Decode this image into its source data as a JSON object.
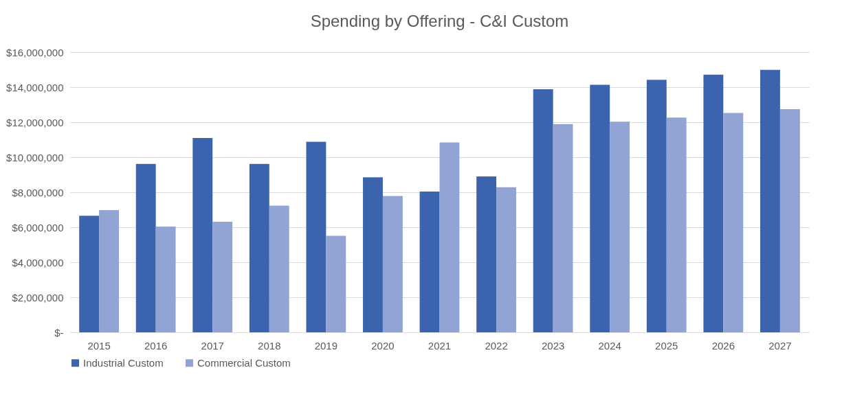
{
  "chart_data": {
    "type": "bar",
    "title": "Spending by Offering - C&I Custom",
    "categories": [
      "2015",
      "2016",
      "2017",
      "2018",
      "2019",
      "2020",
      "2021",
      "2022",
      "2023",
      "2024",
      "2025",
      "2026",
      "2027"
    ],
    "series": [
      {
        "name": "Industrial Custom",
        "color": "#3c64ae",
        "values": [
          6660000,
          9620000,
          11100000,
          9620000,
          10880000,
          8850000,
          8040000,
          8900000,
          13880000,
          14140000,
          14420000,
          14720000,
          14990000
        ]
      },
      {
        "name": "Commercial Custom",
        "color": "#91a4d4",
        "values": [
          6980000,
          6040000,
          6310000,
          7240000,
          5510000,
          7780000,
          10840000,
          8280000,
          11890000,
          12030000,
          12260000,
          12530000,
          12750000
        ]
      }
    ],
    "ylim": [
      0,
      16000000
    ],
    "yticks": [
      {
        "value": 0,
        "label": "$-"
      },
      {
        "value": 2000000,
        "label": "$2,000,000"
      },
      {
        "value": 4000000,
        "label": "$4,000,000"
      },
      {
        "value": 6000000,
        "label": "$6,000,000"
      },
      {
        "value": 8000000,
        "label": "$8,000,000"
      },
      {
        "value": 10000000,
        "label": "$10,000,000"
      },
      {
        "value": 12000000,
        "label": "$12,000,000"
      },
      {
        "value": 14000000,
        "label": "$14,000,000"
      },
      {
        "value": 16000000,
        "label": "$16,000,000"
      }
    ],
    "grid": "y",
    "legend": "bottom"
  }
}
